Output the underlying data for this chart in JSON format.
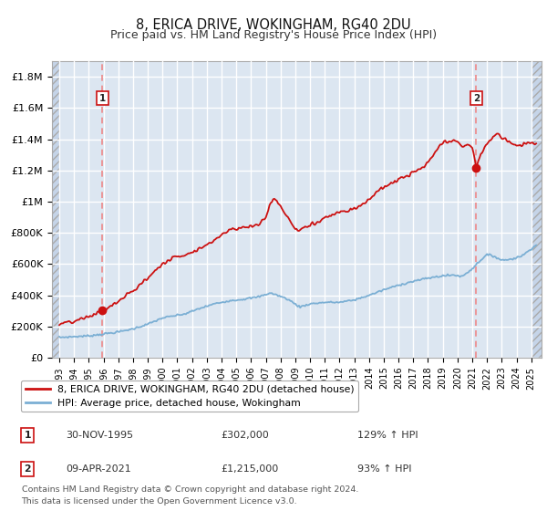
{
  "title": "8, ERICA DRIVE, WOKINGHAM, RG40 2DU",
  "subtitle": "Price paid vs. HM Land Registry's House Price Index (HPI)",
  "ylim": [
    0,
    1900000
  ],
  "yticks": [
    0,
    200000,
    400000,
    600000,
    800000,
    1000000,
    1200000,
    1400000,
    1600000,
    1800000
  ],
  "ytick_labels": [
    "£0",
    "£200K",
    "£400K",
    "£600K",
    "£800K",
    "£1M",
    "£1.2M",
    "£1.4M",
    "£1.6M",
    "£1.8M"
  ],
  "sale1_date": 1995.92,
  "sale1_price": 302000,
  "sale2_date": 2021.27,
  "sale2_price": 1215000,
  "hpi_line_color": "#7bafd4",
  "price_line_color": "#cc1111",
  "marker_color": "#cc1111",
  "vline_color": "#ee8888",
  "background_color": "#dce6f1",
  "hatch_color": "#c5d4e8",
  "grid_color": "#ffffff",
  "legend_line1": "8, ERICA DRIVE, WOKINGHAM, RG40 2DU (detached house)",
  "legend_line2": "HPI: Average price, detached house, Wokingham",
  "annotation1_date": "30-NOV-1995",
  "annotation1_price": "£302,000",
  "annotation1_hpi": "129% ↑ HPI",
  "annotation2_date": "09-APR-2021",
  "annotation2_price": "£1,215,000",
  "annotation2_hpi": "93% ↑ HPI",
  "footer": "Contains HM Land Registry data © Crown copyright and database right 2024.\nThis data is licensed under the Open Government Licence v3.0.",
  "xlim_left": 1992.5,
  "xlim_right": 2025.7,
  "hatch_left_end": 1993.0,
  "hatch_right_start": 2025.1
}
